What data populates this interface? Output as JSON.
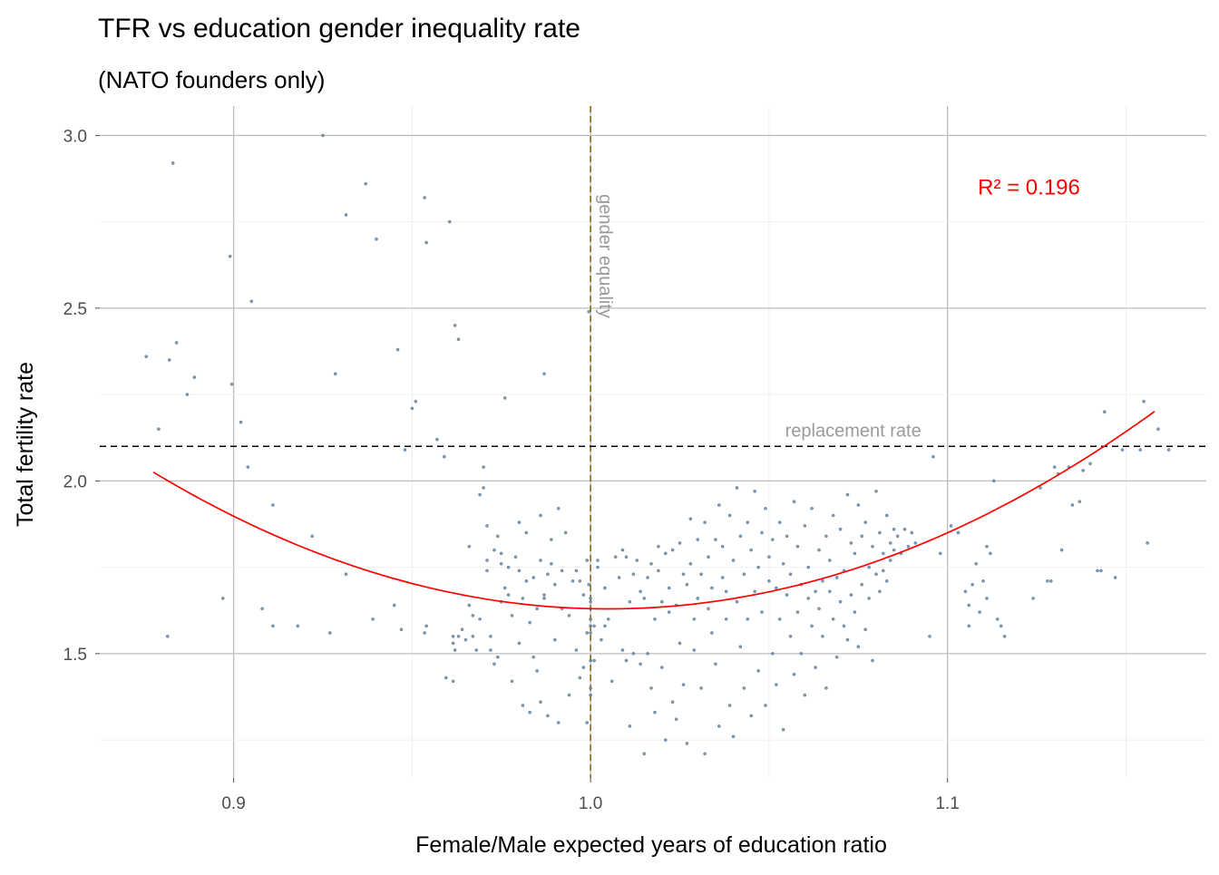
{
  "chart_data": {
    "type": "scatter",
    "title": "TFR vs education gender inequality rate",
    "subtitle": "(NATO founders only)",
    "xlabel": "Female/Male expected years of education ratio",
    "ylabel": "Total fertility rate",
    "xlim": [
      0.8625,
      1.1725
    ],
    "ylim": [
      1.14,
      3.085
    ],
    "x_ticks": [
      0.9,
      1.0,
      1.1
    ],
    "x_tick_labels": [
      "0.9",
      "1.0",
      "1.1"
    ],
    "y_ticks": [
      1.5,
      2.0,
      2.5,
      3.0
    ],
    "y_tick_labels": [
      "1.5",
      "2.0",
      "2.5",
      "3.0"
    ],
    "grid": true,
    "point_color": "#6a8aa8",
    "fit_color": "#ff0000",
    "quadratic_fit": {
      "coefficients": [
        26.26,
        -49.02,
        24.39
      ],
      "x_range": [
        0.8775,
        1.158
      ]
    },
    "annotations": {
      "r_squared": "R² = 0.196",
      "replacement_rate_label": "replacement rate",
      "replacement_rate_value": 2.1,
      "gender_equality_label": "gender equality",
      "gender_equality_value": 1.0
    },
    "points": [
      [
        0.8755,
        2.36
      ],
      [
        0.879,
        2.15
      ],
      [
        0.8815,
        1.55
      ],
      [
        0.882,
        2.35
      ],
      [
        0.883,
        2.92
      ],
      [
        0.884,
        2.4
      ],
      [
        0.887,
        2.25
      ],
      [
        0.889,
        2.3
      ],
      [
        0.897,
        1.66
      ],
      [
        0.899,
        2.65
      ],
      [
        0.8995,
        2.28
      ],
      [
        0.902,
        2.17
      ],
      [
        0.904,
        2.04
      ],
      [
        0.905,
        2.52
      ],
      [
        0.908,
        1.63
      ],
      [
        0.911,
        1.58
      ],
      [
        0.911,
        1.93
      ],
      [
        0.918,
        1.58
      ],
      [
        0.922,
        1.84
      ],
      [
        0.925,
        3.0
      ],
      [
        0.927,
        1.56
      ],
      [
        0.9285,
        2.31
      ],
      [
        0.9315,
        1.73
      ],
      [
        0.9315,
        2.77
      ],
      [
        0.937,
        2.86
      ],
      [
        0.939,
        1.6
      ],
      [
        0.94,
        2.7
      ],
      [
        0.945,
        1.64
      ],
      [
        0.946,
        2.38
      ],
      [
        0.947,
        1.57
      ],
      [
        0.948,
        2.09
      ],
      [
        0.95,
        2.21
      ],
      [
        0.951,
        2.23
      ],
      [
        0.9535,
        1.56
      ],
      [
        0.954,
        1.58
      ],
      [
        0.9535,
        2.82
      ],
      [
        0.954,
        2.69
      ],
      [
        0.957,
        2.12
      ],
      [
        0.959,
        2.07
      ],
      [
        0.9605,
        2.75
      ],
      [
        0.9595,
        1.43
      ],
      [
        0.9615,
        1.42
      ],
      [
        0.962,
        2.45
      ],
      [
        0.963,
        2.41
      ],
      [
        0.9615,
        1.53
      ],
      [
        0.9615,
        1.55
      ],
      [
        0.962,
        1.51
      ],
      [
        0.963,
        1.55
      ],
      [
        0.964,
        1.57
      ],
      [
        0.965,
        1.54
      ],
      [
        0.966,
        1.81
      ],
      [
        0.966,
        1.64
      ],
      [
        0.967,
        1.61
      ],
      [
        0.967,
        1.55
      ],
      [
        0.968,
        1.51
      ],
      [
        0.969,
        1.6
      ],
      [
        0.969,
        1.96
      ],
      [
        0.97,
        1.98
      ],
      [
        0.97,
        2.04
      ],
      [
        0.971,
        1.87
      ],
      [
        0.971,
        1.77
      ],
      [
        0.971,
        1.74
      ],
      [
        0.972,
        1.51
      ],
      [
        0.972,
        1.55
      ],
      [
        0.973,
        1.8
      ],
      [
        0.973,
        1.47
      ],
      [
        0.974,
        1.49
      ],
      [
        0.974,
        1.84
      ],
      [
        0.975,
        1.79
      ],
      [
        0.975,
        1.65
      ],
      [
        0.975,
        1.76
      ],
      [
        0.976,
        1.69
      ],
      [
        0.976,
        2.24
      ],
      [
        0.977,
        1.67
      ],
      [
        0.977,
        1.75
      ],
      [
        0.978,
        1.42
      ],
      [
        0.978,
        1.61
      ],
      [
        0.979,
        1.78
      ],
      [
        0.98,
        1.74
      ],
      [
        0.98,
        1.88
      ],
      [
        0.98,
        1.53
      ],
      [
        0.981,
        1.66
      ],
      [
        0.981,
        1.35
      ],
      [
        0.982,
        1.71
      ],
      [
        0.982,
        1.85
      ],
      [
        0.983,
        1.33
      ],
      [
        0.983,
        1.59
      ],
      [
        0.984,
        1.72
      ],
      [
        0.984,
        1.49
      ],
      [
        0.985,
        1.63
      ],
      [
        0.985,
        1.45
      ],
      [
        0.986,
        1.77
      ],
      [
        0.986,
        1.9
      ],
      [
        0.986,
        1.36
      ],
      [
        0.987,
        1.67
      ],
      [
        0.987,
        2.31
      ],
      [
        0.987,
        1.66
      ],
      [
        0.988,
        1.32
      ],
      [
        0.988,
        1.73
      ],
      [
        0.989,
        1.76
      ],
      [
        0.989,
        1.83
      ],
      [
        0.99,
        1.7
      ],
      [
        0.99,
        1.54
      ],
      [
        0.991,
        1.92
      ],
      [
        0.991,
        1.3
      ],
      [
        0.992,
        1.74
      ],
      [
        0.992,
        1.63
      ],
      [
        0.993,
        1.85
      ],
      [
        0.994,
        1.38
      ],
      [
        0.994,
        1.61
      ],
      [
        0.995,
        1.71
      ],
      [
        0.996,
        1.74
      ],
      [
        0.996,
        1.51
      ],
      [
        0.997,
        1.43
      ],
      [
        0.997,
        1.71
      ],
      [
        0.998,
        1.46
      ],
      [
        0.998,
        1.67
      ],
      [
        0.999,
        1.56
      ],
      [
        0.9995,
        1.7
      ],
      [
        0.999,
        1.77
      ],
      [
        0.9995,
        2.49
      ],
      [
        0.999,
        1.3
      ],
      [
        1.0,
        1.58
      ],
      [
        1.0,
        1.66
      ],
      [
        1.0,
        1.6
      ],
      [
        1.0,
        1.38
      ],
      [
        1.0,
        1.48
      ],
      [
        1.0,
        1.63
      ],
      [
        1.0,
        1.65
      ],
      [
        1.0,
        1.56
      ],
      [
        1.0,
        1.4
      ],
      [
        1.001,
        1.58
      ],
      [
        1.001,
        1.48
      ],
      [
        1.002,
        1.75
      ],
      [
        1.002,
        1.77
      ],
      [
        1.003,
        1.54
      ],
      [
        1.004,
        1.58
      ],
      [
        1.004,
        1.69
      ],
      [
        1.005,
        1.6
      ],
      [
        1.006,
        1.42
      ],
      [
        1.007,
        1.78
      ],
      [
        1.008,
        1.72
      ],
      [
        1.009,
        1.8
      ],
      [
        1.009,
        1.51
      ],
      [
        1.01,
        1.48
      ],
      [
        1.01,
        1.78
      ],
      [
        1.011,
        1.65
      ],
      [
        1.011,
        1.29
      ],
      [
        1.012,
        1.73
      ],
      [
        1.012,
        1.5
      ],
      [
        1.013,
        1.77
      ],
      [
        1.014,
        1.68
      ],
      [
        1.014,
        1.47
      ],
      [
        1.015,
        1.21
      ],
      [
        1.015,
        1.66
      ],
      [
        1.016,
        1.72
      ],
      [
        1.016,
        1.5
      ],
      [
        1.017,
        1.4
      ],
      [
        1.017,
        1.76
      ],
      [
        1.018,
        1.6
      ],
      [
        1.018,
        1.33
      ],
      [
        1.019,
        1.81
      ],
      [
        1.019,
        1.74
      ],
      [
        1.02,
        1.65
      ],
      [
        1.02,
        1.46
      ],
      [
        1.021,
        1.25
      ],
      [
        1.021,
        1.79
      ],
      [
        1.022,
        1.69
      ],
      [
        1.022,
        1.62
      ],
      [
        1.023,
        1.36
      ],
      [
        1.023,
        1.8
      ],
      [
        1.024,
        1.64
      ],
      [
        1.024,
        1.31
      ],
      [
        1.025,
        1.53
      ],
      [
        1.025,
        1.82
      ],
      [
        1.026,
        1.73
      ],
      [
        1.026,
        1.41
      ],
      [
        1.027,
        1.7
      ],
      [
        1.027,
        1.24
      ],
      [
        1.028,
        1.76
      ],
      [
        1.028,
        1.89
      ],
      [
        1.029,
        1.6
      ],
      [
        1.029,
        1.51
      ],
      [
        1.03,
        1.83
      ],
      [
        1.03,
        1.66
      ],
      [
        1.031,
        1.73
      ],
      [
        1.031,
        1.4
      ],
      [
        1.032,
        1.88
      ],
      [
        1.032,
        1.21
      ],
      [
        1.033,
        1.78
      ],
      [
        1.033,
        1.63
      ],
      [
        1.034,
        1.69
      ],
      [
        1.034,
        1.56
      ],
      [
        1.035,
        1.83
      ],
      [
        1.035,
        1.47
      ],
      [
        1.036,
        1.93
      ],
      [
        1.036,
        1.29
      ],
      [
        1.037,
        1.81
      ],
      [
        1.037,
        1.72
      ],
      [
        1.038,
        1.68
      ],
      [
        1.038,
        1.6
      ],
      [
        1.039,
        1.9
      ],
      [
        1.039,
        1.35
      ],
      [
        1.04,
        1.77
      ],
      [
        1.04,
        1.26
      ],
      [
        1.041,
        1.98
      ],
      [
        1.041,
        1.65
      ],
      [
        1.042,
        1.84
      ],
      [
        1.042,
        1.52
      ],
      [
        1.043,
        1.73
      ],
      [
        1.043,
        1.4
      ],
      [
        1.044,
        1.88
      ],
      [
        1.044,
        1.6
      ],
      [
        1.045,
        1.8
      ],
      [
        1.045,
        1.32
      ],
      [
        1.046,
        1.97
      ],
      [
        1.046,
        1.68
      ],
      [
        1.047,
        1.75
      ],
      [
        1.047,
        1.45
      ],
      [
        1.048,
        1.85
      ],
      [
        1.048,
        1.62
      ],
      [
        1.049,
        1.92
      ],
      [
        1.049,
        1.35
      ],
      [
        1.05,
        1.78
      ],
      [
        1.05,
        1.71
      ],
      [
        1.051,
        1.83
      ],
      [
        1.051,
        1.5
      ],
      [
        1.052,
        1.69
      ],
      [
        1.052,
        1.41
      ],
      [
        1.053,
        1.88
      ],
      [
        1.053,
        1.6
      ],
      [
        1.054,
        1.76
      ],
      [
        1.054,
        1.28
      ],
      [
        1.055,
        1.84
      ],
      [
        1.055,
        1.67
      ],
      [
        1.056,
        1.73
      ],
      [
        1.056,
        1.55
      ],
      [
        1.057,
        1.94
      ],
      [
        1.057,
        1.44
      ],
      [
        1.058,
        1.81
      ],
      [
        1.058,
        1.62
      ],
      [
        1.059,
        1.7
      ],
      [
        1.059,
        1.5
      ],
      [
        1.06,
        1.87
      ],
      [
        1.06,
        1.38
      ],
      [
        1.061,
        1.75
      ],
      [
        1.061,
        1.66
      ],
      [
        1.062,
        1.92
      ],
      [
        1.062,
        1.58
      ],
      [
        1.063,
        1.68
      ],
      [
        1.063,
        1.46
      ],
      [
        1.064,
        1.8
      ],
      [
        1.064,
        1.63
      ],
      [
        1.065,
        1.71
      ],
      [
        1.065,
        1.55
      ],
      [
        1.066,
        1.84
      ],
      [
        1.066,
        1.4
      ],
      [
        1.067,
        1.77
      ],
      [
        1.067,
        1.68
      ],
      [
        1.068,
        1.9
      ],
      [
        1.068,
        1.6
      ],
      [
        1.069,
        1.72
      ],
      [
        1.069,
        1.49
      ],
      [
        1.07,
        1.86
      ],
      [
        1.07,
        1.65
      ],
      [
        1.071,
        1.74
      ],
      [
        1.071,
        1.58
      ],
      [
        1.072,
        1.96
      ],
      [
        1.072,
        1.54
      ],
      [
        1.073,
        1.82
      ],
      [
        1.073,
        1.67
      ],
      [
        1.074,
        1.79
      ],
      [
        1.074,
        1.62
      ],
      [
        1.075,
        1.93
      ],
      [
        1.075,
        1.52
      ],
      [
        1.076,
        1.84
      ],
      [
        1.076,
        1.7
      ],
      [
        1.077,
        1.88
      ],
      [
        1.077,
        1.57
      ],
      [
        1.078,
        1.75
      ],
      [
        1.078,
        1.66
      ],
      [
        1.079,
        1.81
      ],
      [
        1.079,
        1.48
      ],
      [
        1.08,
        1.97
      ],
      [
        1.08,
        1.73
      ],
      [
        1.081,
        1.85
      ],
      [
        1.081,
        1.68
      ],
      [
        1.082,
        1.79
      ],
      [
        1.082,
        1.74
      ],
      [
        1.083,
        1.9
      ],
      [
        1.083,
        1.71
      ],
      [
        1.084,
        1.82
      ],
      [
        1.084,
        1.77
      ],
      [
        1.085,
        1.86
      ],
      [
        1.085,
        1.8
      ],
      [
        1.086,
        1.84
      ],
      [
        1.087,
        1.79
      ],
      [
        1.088,
        1.86
      ],
      [
        1.089,
        1.81
      ],
      [
        1.09,
        1.85
      ],
      [
        1.091,
        1.82
      ],
      [
        1.095,
        1.55
      ],
      [
        1.096,
        2.07
      ],
      [
        1.098,
        1.79
      ],
      [
        1.101,
        1.87
      ],
      [
        1.103,
        1.85
      ],
      [
        1.105,
        1.68
      ],
      [
        1.106,
        1.64
      ],
      [
        1.106,
        1.58
      ],
      [
        1.107,
        1.7
      ],
      [
        1.108,
        1.76
      ],
      [
        1.109,
        1.62
      ],
      [
        1.11,
        1.71
      ],
      [
        1.111,
        1.81
      ],
      [
        1.111,
        1.66
      ],
      [
        1.112,
        1.79
      ],
      [
        1.113,
        2.0
      ],
      [
        1.114,
        1.6
      ],
      [
        1.115,
        1.58
      ],
      [
        1.116,
        1.55
      ],
      [
        1.124,
        1.66
      ],
      [
        1.126,
        1.98
      ],
      [
        1.128,
        1.71
      ],
      [
        1.129,
        1.71
      ],
      [
        1.13,
        2.04
      ],
      [
        1.131,
        2.02
      ],
      [
        1.132,
        1.8
      ],
      [
        1.134,
        2.04
      ],
      [
        1.135,
        1.93
      ],
      [
        1.137,
        1.94
      ],
      [
        1.138,
        2.03
      ],
      [
        1.14,
        2.05
      ],
      [
        1.142,
        1.74
      ],
      [
        1.143,
        1.74
      ],
      [
        1.144,
        2.2
      ],
      [
        1.147,
        1.72
      ],
      [
        1.149,
        2.09
      ],
      [
        1.154,
        2.09
      ],
      [
        1.155,
        2.23
      ],
      [
        1.156,
        1.82
      ],
      [
        1.159,
        2.15
      ],
      [
        1.162,
        2.09
      ]
    ]
  }
}
